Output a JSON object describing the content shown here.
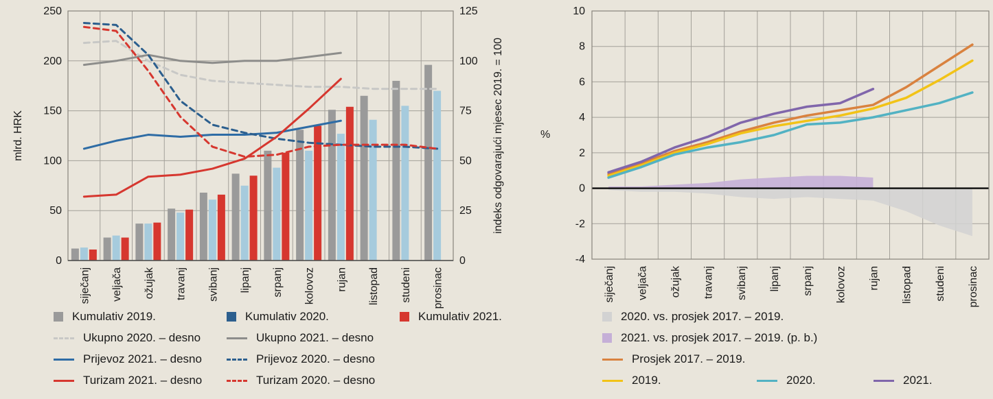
{
  "layout": {
    "bg": "#e9e5db",
    "grid_color": "#a3a099",
    "frame_color": "#87837b",
    "axis_color": "#4a4a4a",
    "text_color": "#1a1a1a",
    "zero_line_color": "#151515"
  },
  "chart_data": [
    {
      "id": "cumulative-and-indices",
      "type": "bar+line",
      "ylabel_left": "mlrd. HRK",
      "ylabel_right": "indeks odgovarajući mjesec 2019. = 100",
      "categories": [
        "siječanj",
        "veljača",
        "ožujak",
        "travanj",
        "svibanj",
        "lipanj",
        "srpanj",
        "kolovoz",
        "rujan",
        "listopad",
        "studeni",
        "prosinac"
      ],
      "y_left": {
        "min": 0,
        "max": 250,
        "ticks": [
          0,
          50,
          100,
          150,
          200,
          250
        ]
      },
      "y_right": {
        "min": 0,
        "max": 125,
        "ticks": [
          0,
          25,
          50,
          75,
          100,
          125
        ]
      },
      "grid": true,
      "bar_series": [
        {
          "name": "Kumulativ 2019.",
          "color": "#9a9a9a",
          "axis": "left",
          "values": [
            12,
            23,
            37,
            52,
            68,
            87,
            110,
            131,
            151,
            165,
            180,
            196
          ]
        },
        {
          "name": "Kumulativ 2020.",
          "color": "#a6cbdd",
          "legend_color": "#2c5f8e",
          "axis": "left",
          "values": [
            13,
            25,
            37,
            48,
            61,
            75,
            93,
            110,
            127,
            141,
            155,
            170
          ]
        },
        {
          "name": "Kumulativ 2021.",
          "color": "#d6372f",
          "axis": "left",
          "values": [
            11,
            23,
            38,
            51,
            66,
            85,
            108,
            135,
            154,
            null,
            null,
            null
          ]
        }
      ],
      "line_series": [
        {
          "name": "Ukupno 2020. – desno",
          "color": "#c8c8c6",
          "dash": true,
          "axis": "right",
          "values": [
            109,
            110,
            100,
            93,
            90,
            89,
            88,
            87,
            87,
            86,
            86,
            86
          ]
        },
        {
          "name": "Ukupno 2021. – desno",
          "color": "#8d8d8b",
          "dash": false,
          "axis": "right",
          "values": [
            98,
            100,
            103,
            100,
            99,
            100,
            100,
            102,
            104,
            null,
            null,
            null
          ]
        },
        {
          "name": "Prijevoz 2021. – desno",
          "color": "#2e6ca5",
          "dash": false,
          "axis": "right",
          "values": [
            56,
            60,
            63,
            62,
            63,
            63,
            64,
            67,
            70,
            null,
            null,
            null
          ]
        },
        {
          "name": "Prijevoz 2020. – desno",
          "color": "#2c5f8e",
          "dash": true,
          "axis": "right",
          "values": [
            119,
            118,
            103,
            80,
            68,
            64,
            61,
            59,
            58,
            57,
            57,
            56
          ]
        },
        {
          "name": "Turizam 2021. – desno",
          "color": "#d6372f",
          "dash": false,
          "axis": "right",
          "values": [
            32,
            33,
            42,
            43,
            46,
            51,
            62,
            76,
            91,
            null,
            null,
            null
          ]
        },
        {
          "name": "Turizam 2020. – desno",
          "color": "#d6372f",
          "dash": true,
          "axis": "right",
          "values": [
            117,
            115,
            95,
            72,
            57,
            52,
            53,
            57,
            58,
            58,
            58,
            56
          ]
        }
      ]
    },
    {
      "id": "growth-vs-average",
      "type": "line+area",
      "ylabel": "%",
      "categories": [
        "siječanj",
        "veljača",
        "ožujak",
        "travanj",
        "svibanj",
        "lipanj",
        "srpanj",
        "kolovoz",
        "rujan",
        "listopad",
        "studeni",
        "prosinac"
      ],
      "y": {
        "min": -4,
        "max": 10,
        "ticks": [
          -4,
          -2,
          0,
          2,
          4,
          6,
          8,
          10
        ]
      },
      "grid": true,
      "area_series": [
        {
          "name": "2020. vs. prosjek 2017. – 2019.",
          "color": "#d2d2d2",
          "opacity": 0.85,
          "values": [
            -0.1,
            -0.2,
            -0.2,
            -0.3,
            -0.5,
            -0.6,
            -0.5,
            -0.6,
            -0.7,
            -1.3,
            -2.1,
            -2.7
          ]
        },
        {
          "name": "2021. vs. prosjek 2017. – 2019. (p. b.)",
          "color": "#c5afd7",
          "opacity": 0.9,
          "values": [
            0.1,
            0.1,
            0.2,
            0.3,
            0.5,
            0.6,
            0.7,
            0.7,
            0.6
          ]
        }
      ],
      "line_series": [
        {
          "name": "Prosjek 2017. – 2019.",
          "color": "#d9823f",
          "values": [
            0.8,
            1.4,
            2.1,
            2.6,
            3.2,
            3.7,
            4.1,
            4.4,
            4.7,
            5.7,
            6.9,
            8.1
          ]
        },
        {
          "name": "2019.",
          "color": "#f2c317",
          "values": [
            0.7,
            1.3,
            2.0,
            2.5,
            3.1,
            3.5,
            3.8,
            4.1,
            4.5,
            5.1,
            6.1,
            7.2
          ]
        },
        {
          "name": "2020.",
          "color": "#52b2c3",
          "values": [
            0.6,
            1.2,
            1.9,
            2.3,
            2.6,
            3.0,
            3.6,
            3.7,
            4.0,
            4.4,
            4.8,
            5.4
          ]
        },
        {
          "name": "2021.",
          "color": "#8066ab",
          "values": [
            0.9,
            1.5,
            2.3,
            2.9,
            3.7,
            4.2,
            4.6,
            4.8,
            5.6
          ]
        }
      ]
    }
  ],
  "legend_left": {
    "rows": [
      [
        {
          "swatch": "square",
          "color": "#9a9a9a",
          "label": "Kumulativ 2019."
        },
        {
          "swatch": "square",
          "color": "#2c5f8e",
          "label": "Kumulativ 2020."
        },
        {
          "swatch": "square",
          "color": "#d6372f",
          "label": "Kumulativ 2021."
        }
      ],
      [
        {
          "swatch": "line-dash",
          "color": "#c8c8c6",
          "label": "Ukupno 2020. – desno"
        },
        {
          "swatch": "line",
          "color": "#8d8d8b",
          "label": "Ukupno 2021. – desno"
        }
      ],
      [
        {
          "swatch": "line",
          "color": "#2e6ca5",
          "label": "Prijevoz 2021. – desno"
        },
        {
          "swatch": "line-dash",
          "color": "#2c5f8e",
          "label": "Prijevoz 2020. – desno"
        }
      ],
      [
        {
          "swatch": "line",
          "color": "#d6372f",
          "label": "Turizam 2021. – desno"
        },
        {
          "swatch": "line-dash",
          "color": "#d6372f",
          "label": "Turizam 2020. – desno"
        }
      ]
    ]
  },
  "legend_right": {
    "rows": [
      [
        {
          "swatch": "square",
          "color": "#d2d2d2",
          "label": "2020. vs. prosjek 2017. – 2019."
        }
      ],
      [
        {
          "swatch": "square",
          "color": "#c5afd7",
          "label": "2021. vs. prosjek 2017. – 2019. (p. b.)"
        }
      ],
      [
        {
          "swatch": "line",
          "color": "#d9823f",
          "label": "Prosjek 2017. – 2019."
        }
      ],
      [
        {
          "swatch": "line",
          "color": "#f2c317",
          "label": "2019."
        },
        {
          "swatch": "line",
          "color": "#52b2c3",
          "label": "2020."
        },
        {
          "swatch": "line",
          "color": "#8066ab",
          "label": "2021."
        }
      ]
    ]
  }
}
